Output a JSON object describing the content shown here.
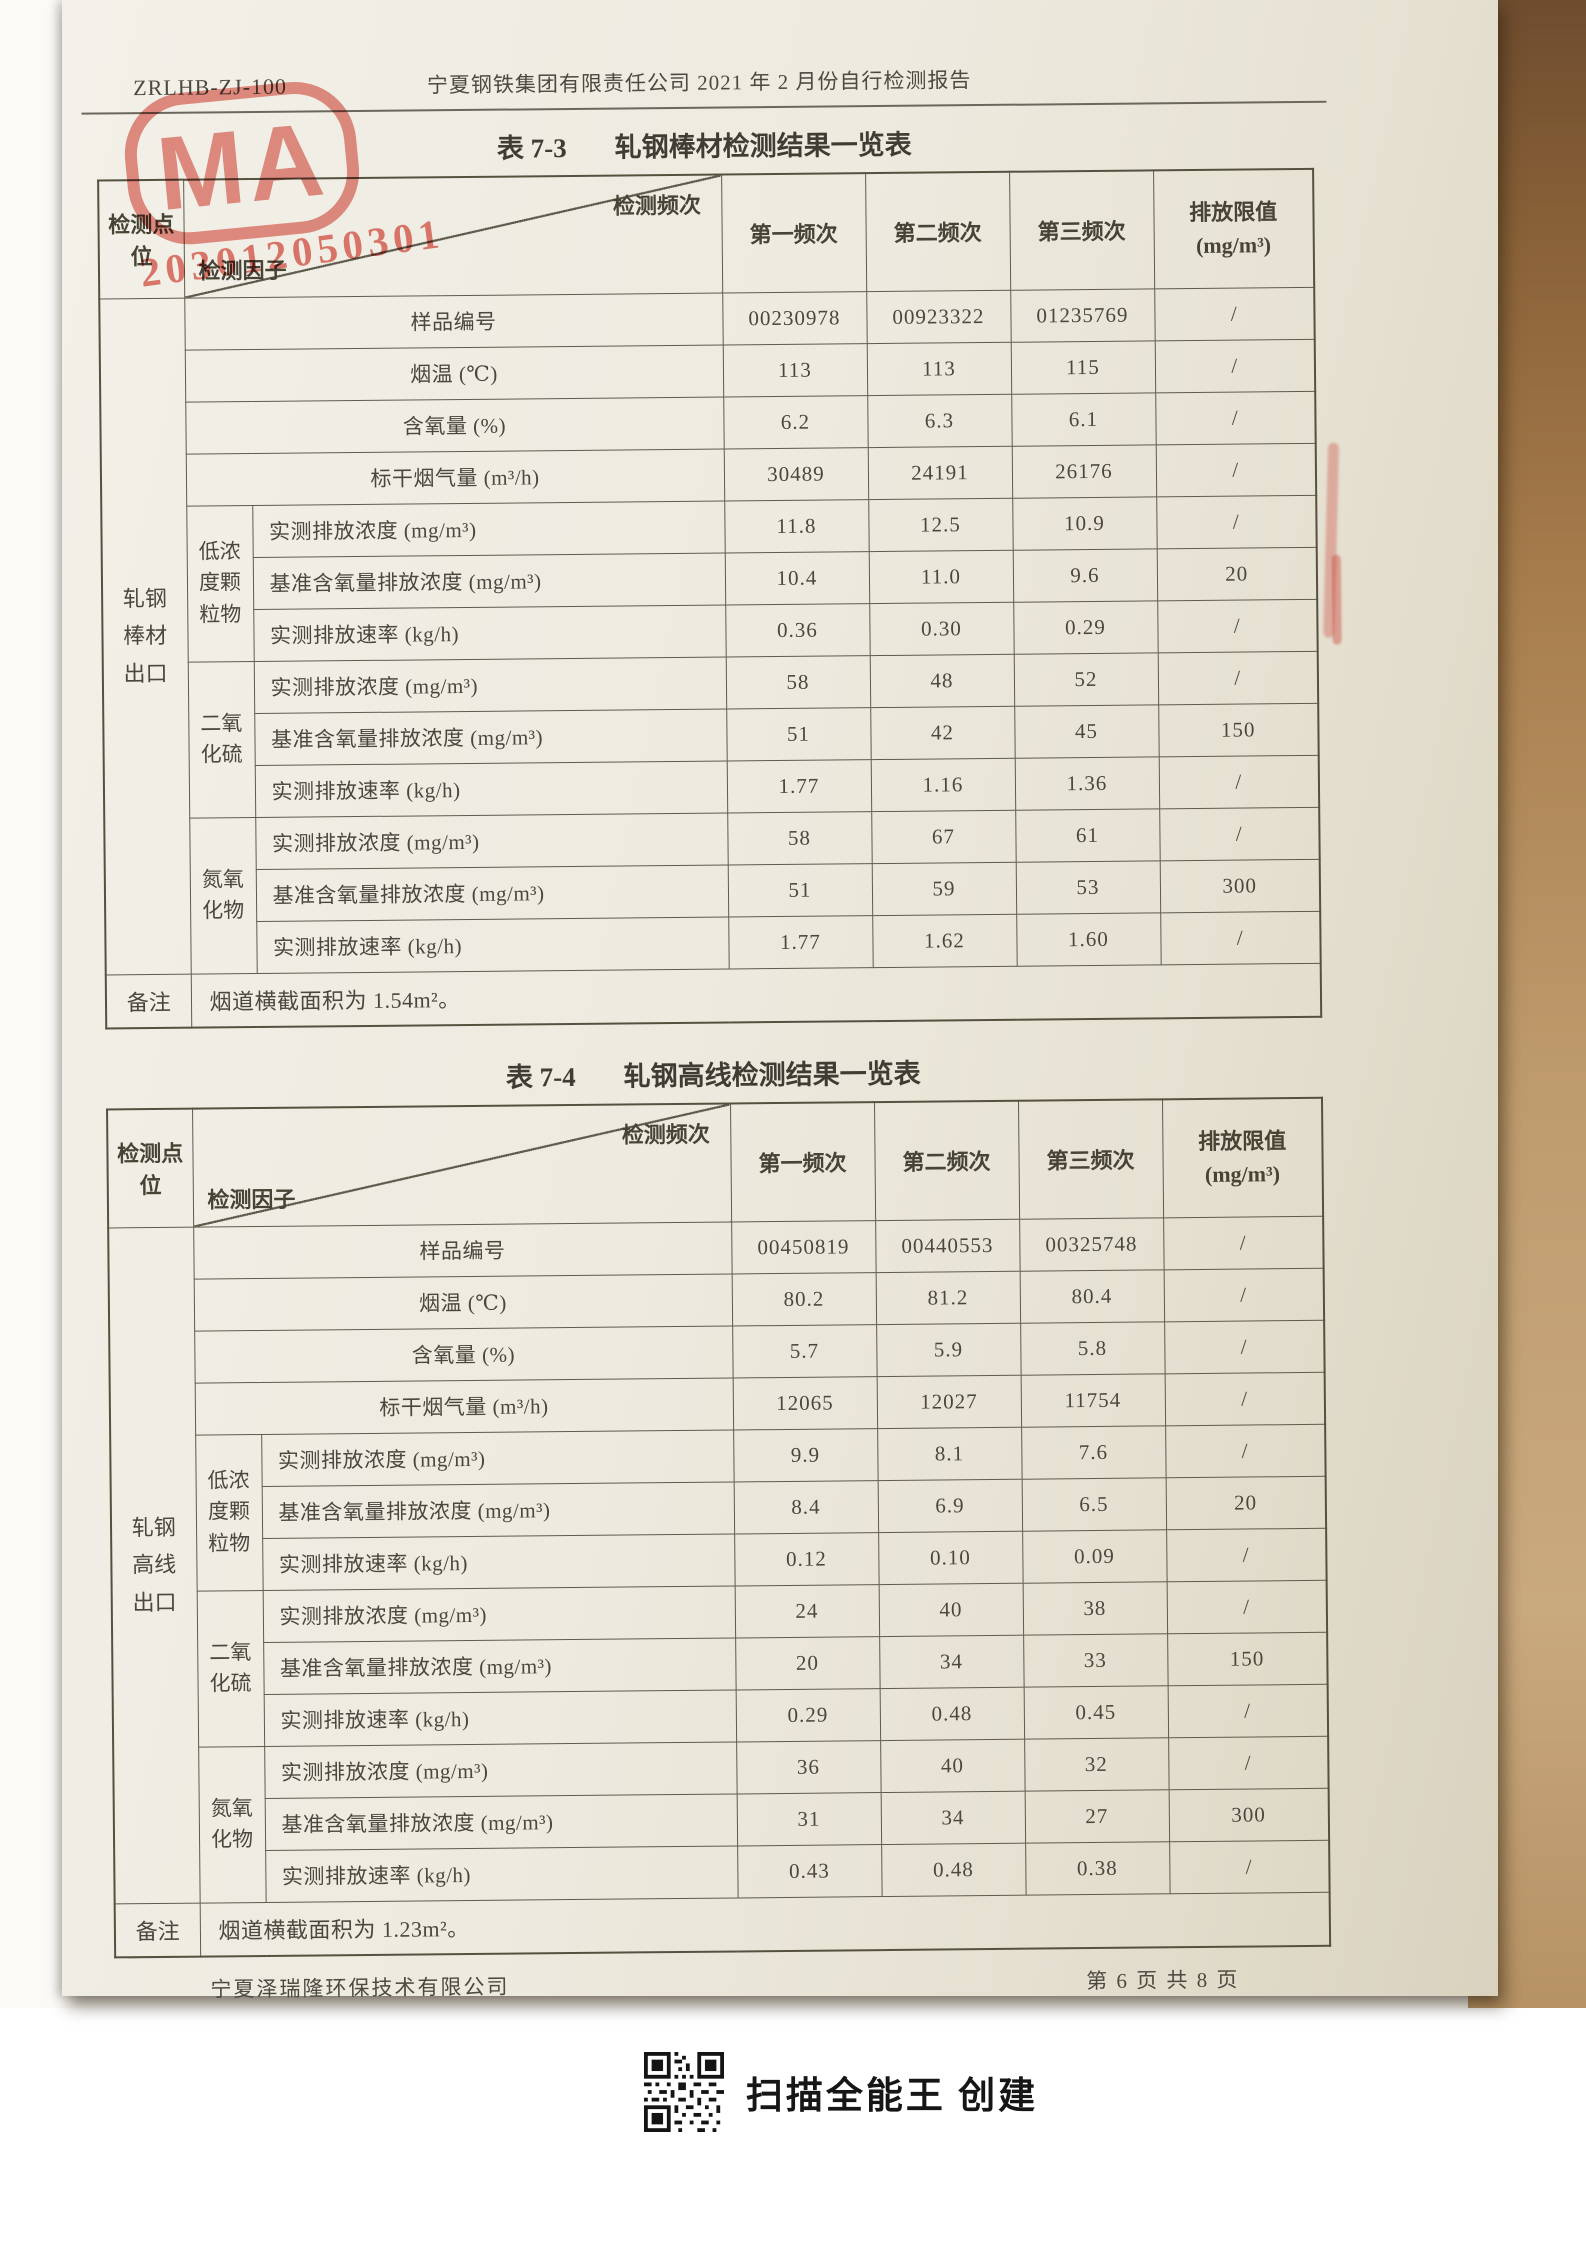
{
  "page": {
    "doc_code": "ZRLHB-ZJ-100",
    "header_title": "宁夏钢铁集团有限责任公司 2021 年 2 月份自行检测报告",
    "footer_company": "宁夏泽瑞隆环保技术有限公司",
    "footer_page_info": "第 6 页  共 8 页",
    "scanner_note": "扫描全能王 创建",
    "stamp": {
      "letters": "MA",
      "number": "203012050301",
      "color": "#cf4a3c"
    }
  },
  "table_header": {
    "point": "检测点位",
    "factor": "检测因子",
    "frequency": "检测频次",
    "freq1": "第一频次",
    "freq2": "第二频次",
    "freq3": "第三频次",
    "limit_line1": "排放限值",
    "limit_line2": "(mg/m³)"
  },
  "tables": [
    {
      "caption_no": "表 7-3",
      "caption_title": "轧钢棒材检测结果一览表",
      "point": "轧钢棒材出口",
      "param_rows": [
        {
          "label": "样品编号",
          "values": [
            "00230978",
            "00923322",
            "01235769"
          ],
          "limit": "/"
        },
        {
          "label": "烟温 (℃)",
          "values": [
            "113",
            "113",
            "115"
          ],
          "limit": "/"
        },
        {
          "label": "含氧量 (%)",
          "values": [
            "6.2",
            "6.3",
            "6.1"
          ],
          "limit": "/"
        },
        {
          "label": "标干烟气量 (m³/h)",
          "values": [
            "30489",
            "24191",
            "26176"
          ],
          "limit": "/"
        }
      ],
      "groups": [
        {
          "name": "低浓度颗粒物",
          "rows": [
            {
              "label": "实测排放浓度 (mg/m³)",
              "values": [
                "11.8",
                "12.5",
                "10.9"
              ],
              "limit": "/"
            },
            {
              "label": "基准含氧量排放浓度 (mg/m³)",
              "values": [
                "10.4",
                "11.0",
                "9.6"
              ],
              "limit": "20"
            },
            {
              "label": "实测排放速率 (kg/h)",
              "values": [
                "0.36",
                "0.30",
                "0.29"
              ],
              "limit": "/"
            }
          ]
        },
        {
          "name": "二氧化硫",
          "rows": [
            {
              "label": "实测排放浓度 (mg/m³)",
              "values": [
                "58",
                "48",
                "52"
              ],
              "limit": "/"
            },
            {
              "label": "基准含氧量排放浓度 (mg/m³)",
              "values": [
                "51",
                "42",
                "45"
              ],
              "limit": "150"
            },
            {
              "label": "实测排放速率 (kg/h)",
              "values": [
                "1.77",
                "1.16",
                "1.36"
              ],
              "limit": "/"
            }
          ]
        },
        {
          "name": "氮氧化物",
          "rows": [
            {
              "label": "实测排放浓度 (mg/m³)",
              "values": [
                "58",
                "67",
                "61"
              ],
              "limit": "/"
            },
            {
              "label": "基准含氧量排放浓度 (mg/m³)",
              "values": [
                "51",
                "59",
                "53"
              ],
              "limit": "300"
            },
            {
              "label": "实测排放速率 (kg/h)",
              "values": [
                "1.77",
                "1.62",
                "1.60"
              ],
              "limit": "/"
            }
          ]
        }
      ],
      "note_label": "备注",
      "note": "烟道横截面积为 1.54m²。"
    },
    {
      "caption_no": "表 7-4",
      "caption_title": "轧钢高线检测结果一览表",
      "point": "轧钢高线出口",
      "param_rows": [
        {
          "label": "样品编号",
          "values": [
            "00450819",
            "00440553",
            "00325748"
          ],
          "limit": "/"
        },
        {
          "label": "烟温 (℃)",
          "values": [
            "80.2",
            "81.2",
            "80.4"
          ],
          "limit": "/"
        },
        {
          "label": "含氧量 (%)",
          "values": [
            "5.7",
            "5.9",
            "5.8"
          ],
          "limit": "/"
        },
        {
          "label": "标干烟气量 (m³/h)",
          "values": [
            "12065",
            "12027",
            "11754"
          ],
          "limit": "/"
        }
      ],
      "groups": [
        {
          "name": "低浓度颗粒物",
          "rows": [
            {
              "label": "实测排放浓度 (mg/m³)",
              "values": [
                "9.9",
                "8.1",
                "7.6"
              ],
              "limit": "/"
            },
            {
              "label": "基准含氧量排放浓度 (mg/m³)",
              "values": [
                "8.4",
                "6.9",
                "6.5"
              ],
              "limit": "20"
            },
            {
              "label": "实测排放速率 (kg/h)",
              "values": [
                "0.12",
                "0.10",
                "0.09"
              ],
              "limit": "/"
            }
          ]
        },
        {
          "name": "二氧化硫",
          "rows": [
            {
              "label": "实测排放浓度 (mg/m³)",
              "values": [
                "24",
                "40",
                "38"
              ],
              "limit": "/"
            },
            {
              "label": "基准含氧量排放浓度 (mg/m³)",
              "values": [
                "20",
                "34",
                "33"
              ],
              "limit": "150"
            },
            {
              "label": "实测排放速率 (kg/h)",
              "values": [
                "0.29",
                "0.48",
                "0.45"
              ],
              "limit": "/"
            }
          ]
        },
        {
          "name": "氮氧化物",
          "rows": [
            {
              "label": "实测排放浓度 (mg/m³)",
              "values": [
                "36",
                "40",
                "32"
              ],
              "limit": "/"
            },
            {
              "label": "基准含氧量排放浓度 (mg/m³)",
              "values": [
                "31",
                "34",
                "27"
              ],
              "limit": "300"
            },
            {
              "label": "实测排放速率 (kg/h)",
              "values": [
                "0.43",
                "0.48",
                "0.38"
              ],
              "limit": "/"
            }
          ]
        }
      ],
      "note_label": "备注",
      "note": "烟道横截面积为 1.23m²。"
    }
  ]
}
